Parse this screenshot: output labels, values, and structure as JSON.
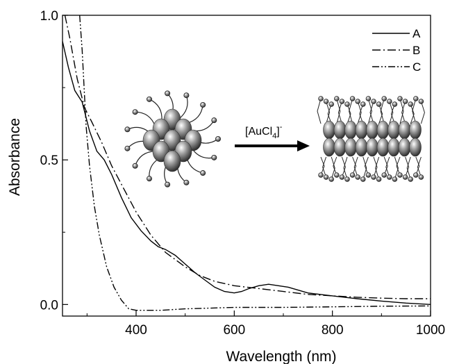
{
  "chart_data": {
    "type": "line",
    "xlabel": "Wavelength (nm)",
    "ylabel": "Absorbance",
    "xlim": [
      250,
      1000
    ],
    "ylim": [
      -0.04,
      1.0
    ],
    "xticks": [
      400,
      600,
      800,
      1000
    ],
    "yticks": [
      0.0,
      0.5,
      1.0
    ],
    "ytick_labels": [
      "0.0",
      "0.5",
      "1.0"
    ],
    "legend_position": "top-right",
    "series": [
      {
        "name": "A",
        "dash": "solid",
        "x": [
          250,
          262,
          275,
          290,
          305,
          320,
          335,
          350,
          370,
          390,
          410,
          430,
          445,
          460,
          480,
          500,
          520,
          540,
          560,
          580,
          600,
          615,
          630,
          650,
          670,
          690,
          710,
          750,
          800,
          850,
          900,
          950,
          1000
        ],
        "y": [
          0.91,
          0.82,
          0.74,
          0.7,
          0.6,
          0.53,
          0.5,
          0.45,
          0.37,
          0.3,
          0.255,
          0.22,
          0.2,
          0.19,
          0.17,
          0.14,
          0.11,
          0.085,
          0.06,
          0.045,
          0.04,
          0.045,
          0.055,
          0.065,
          0.07,
          0.065,
          0.06,
          0.04,
          0.03,
          0.02,
          0.012,
          0.005,
          0.0
        ]
      },
      {
        "name": "B",
        "dash": "dash-dot",
        "x": [
          255,
          265,
          280,
          295,
          310,
          330,
          350,
          375,
          400,
          430,
          460,
          500,
          530,
          560,
          600,
          650,
          700,
          750,
          800,
          850,
          900,
          950,
          1000
        ],
        "y": [
          1.0,
          0.92,
          0.78,
          0.68,
          0.63,
          0.56,
          0.48,
          0.4,
          0.32,
          0.24,
          0.18,
          0.13,
          0.1,
          0.08,
          0.065,
          0.055,
          0.045,
          0.035,
          0.03,
          0.025,
          0.022,
          0.02,
          0.02
        ]
      },
      {
        "name": "C",
        "dash": "dash-dot-dot",
        "x": [
          285,
          290,
          298,
          305,
          315,
          325,
          340,
          355,
          370,
          385,
          400,
          450,
          500,
          600,
          700,
          800,
          900,
          1000
        ],
        "y": [
          1.0,
          0.88,
          0.62,
          0.48,
          0.34,
          0.24,
          0.13,
          0.06,
          0.015,
          -0.015,
          -0.02,
          -0.02,
          -0.015,
          -0.01,
          -0.01,
          -0.008,
          -0.006,
          -0.005
        ]
      }
    ],
    "annotation": {
      "reagent_label": "[AuCl",
      "reagent_subscript": "4",
      "reagent_superscript": "-"
    }
  }
}
